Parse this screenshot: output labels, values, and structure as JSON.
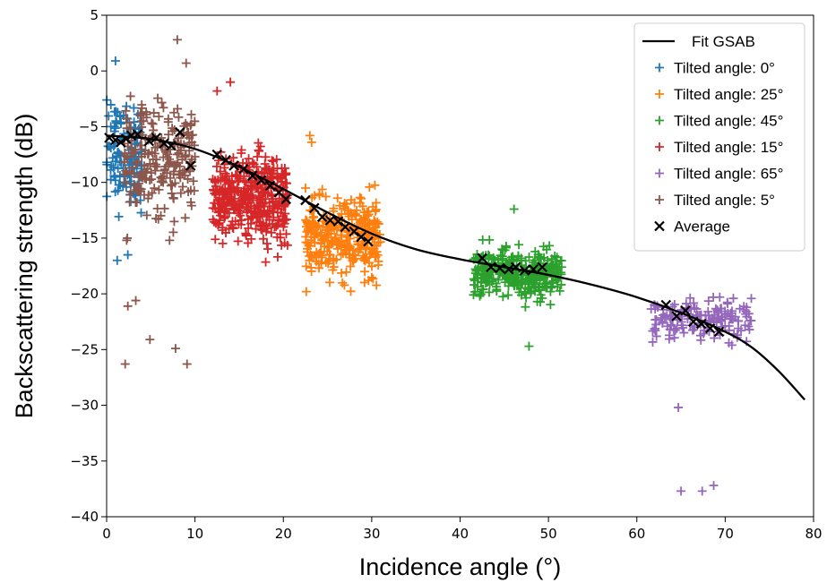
{
  "chart_data": {
    "type": "scatter",
    "xlabel": "Incidence angle (°)",
    "ylabel": "Backscattering strength (dB)",
    "xlim": [
      0,
      80
    ],
    "ylim": [
      -40,
      5
    ],
    "x_ticks": [
      "0",
      "10",
      "20",
      "30",
      "40",
      "50",
      "60",
      "70",
      "80"
    ],
    "y_ticks": [
      "5",
      "0",
      "−5",
      "−10",
      "−15",
      "−20",
      "−25",
      "−30",
      "−35",
      "−40"
    ],
    "grid": false,
    "legend_position": "top-right",
    "series": [
      {
        "name": "Tilted angle: 0°",
        "color": "#1f77b4",
        "marker": "plus",
        "x_range": [
          0,
          4
        ],
        "y_mean": -7.5,
        "y_spread": 4.2,
        "n": 120
      },
      {
        "name": "Tilted angle: 25°",
        "color": "#ff7f0e",
        "marker": "plus",
        "x_range": [
          22.5,
          31
        ],
        "y_mean": -15,
        "y_spread": 3,
        "n": 320
      },
      {
        "name": "Tilted angle: 45°",
        "color": "#2ca02c",
        "marker": "plus",
        "x_range": [
          41.5,
          51.5
        ],
        "y_mean": -18.2,
        "y_spread": 1.9,
        "n": 330
      },
      {
        "name": "Tilted angle: 15°",
        "color": "#d62728",
        "marker": "plus",
        "x_range": [
          12,
          20.5
        ],
        "y_mean": -11.5,
        "y_spread": 3.6,
        "n": 400
      },
      {
        "name": "Tilted angle: 65°",
        "color": "#9467bd",
        "marker": "plus",
        "x_range": [
          61.5,
          73
        ],
        "y_mean": -22.3,
        "y_spread": 1.6,
        "n": 150
      },
      {
        "name": "Tilted angle: 5°",
        "color": "#8c564b",
        "marker": "plus",
        "x_range": [
          2,
          10
        ],
        "y_mean": -8,
        "y_spread": 4.5,
        "n": 230
      }
    ],
    "average": {
      "name": "Average",
      "color": "#000000",
      "marker": "x",
      "points": [
        [
          0.3,
          -6.0
        ],
        [
          1.0,
          -6.2
        ],
        [
          1.6,
          -6.4
        ],
        [
          2.2,
          -6.1
        ],
        [
          2.8,
          -5.8
        ],
        [
          3.5,
          -5.7
        ],
        [
          4.8,
          -6.3
        ],
        [
          5.6,
          -6.0
        ],
        [
          6.5,
          -6.5
        ],
        [
          7.3,
          -6.7
        ],
        [
          8.3,
          -5.5
        ],
        [
          9.5,
          -8.5
        ],
        [
          12.5,
          -7.5
        ],
        [
          13.5,
          -8.0
        ],
        [
          14.4,
          -8.5
        ],
        [
          15.5,
          -8.8
        ],
        [
          16.5,
          -9.4
        ],
        [
          17.5,
          -9.8
        ],
        [
          18.5,
          -10.3
        ],
        [
          19.5,
          -10.9
        ],
        [
          20.3,
          -11.5
        ],
        [
          22.5,
          -11.6
        ],
        [
          23.5,
          -12.3
        ],
        [
          24.4,
          -13.1
        ],
        [
          25.3,
          -13.4
        ],
        [
          26.2,
          -13.5
        ],
        [
          27.0,
          -14.0
        ],
        [
          28.0,
          -14.4
        ],
        [
          28.8,
          -14.9
        ],
        [
          29.6,
          -15.3
        ],
        [
          42.5,
          -16.8
        ],
        [
          43.5,
          -17.6
        ],
        [
          44.5,
          -17.7
        ],
        [
          45.5,
          -17.8
        ],
        [
          46.3,
          -17.6
        ],
        [
          47.3,
          -17.9
        ],
        [
          48.3,
          -17.8
        ],
        [
          49.3,
          -17.6
        ],
        [
          63.3,
          -21.0
        ],
        [
          64.5,
          -22.0
        ],
        [
          65.5,
          -21.5
        ],
        [
          66.4,
          -22.5
        ],
        [
          67.3,
          -22.7
        ],
        [
          68.3,
          -23.1
        ],
        [
          69.3,
          -23.4
        ]
      ]
    },
    "fit": {
      "name": "Fit GSAB",
      "color": "#000000",
      "points": [
        [
          0,
          -5.8
        ],
        [
          5,
          -6.1
        ],
        [
          10,
          -7.0
        ],
        [
          15,
          -8.6
        ],
        [
          20,
          -10.6
        ],
        [
          25,
          -12.7
        ],
        [
          30,
          -14.6
        ],
        [
          35,
          -16.0
        ],
        [
          40,
          -16.9
        ],
        [
          45,
          -17.6
        ],
        [
          50,
          -18.3
        ],
        [
          55,
          -19.2
        ],
        [
          60,
          -20.3
        ],
        [
          65,
          -21.7
        ],
        [
          70,
          -23.4
        ],
        [
          73,
          -24.8
        ],
        [
          76,
          -26.9
        ],
        [
          79,
          -29.5
        ]
      ]
    },
    "outliers": [
      {
        "series": 0,
        "x": 1.0,
        "y": 0.9
      },
      {
        "series": 0,
        "x": 1.2,
        "y": -17.0
      },
      {
        "series": 0,
        "x": 2.4,
        "y": -16.5
      },
      {
        "series": 5,
        "x": 8.0,
        "y": 2.8
      },
      {
        "series": 5,
        "x": 2.1,
        "y": -26.3
      },
      {
        "series": 5,
        "x": 4.9,
        "y": -24.1
      },
      {
        "series": 5,
        "x": 7.8,
        "y": -24.9
      },
      {
        "series": 5,
        "x": 9.1,
        "y": -26.3
      },
      {
        "series": 5,
        "x": 2.4,
        "y": -21.1
      },
      {
        "series": 5,
        "x": 3.3,
        "y": -20.6
      },
      {
        "series": 5,
        "x": 9.0,
        "y": 0.7
      },
      {
        "series": 3,
        "x": 14.0,
        "y": -1.0
      },
      {
        "series": 3,
        "x": 12.5,
        "y": -1.8
      },
      {
        "series": 1,
        "x": 23.0,
        "y": -5.8
      },
      {
        "series": 1,
        "x": 23.2,
        "y": -6.4
      },
      {
        "series": 2,
        "x": 46.1,
        "y": -12.4
      },
      {
        "series": 2,
        "x": 47.8,
        "y": -24.7
      },
      {
        "series": 4,
        "x": 64.7,
        "y": -30.2
      },
      {
        "series": 4,
        "x": 65.0,
        "y": -37.7
      },
      {
        "series": 4,
        "x": 67.4,
        "y": -37.7
      },
      {
        "series": 4,
        "x": 68.7,
        "y": -37.2
      }
    ]
  }
}
